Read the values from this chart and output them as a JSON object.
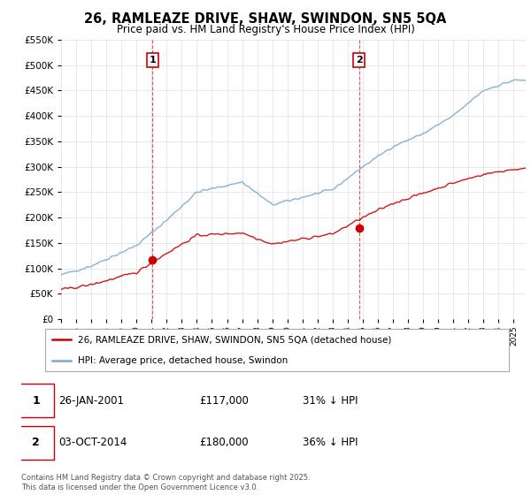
{
  "title": "26, RAMLEAZE DRIVE, SHAW, SWINDON, SN5 5QA",
  "subtitle": "Price paid vs. HM Land Registry's House Price Index (HPI)",
  "legend_line1": "26, RAMLEAZE DRIVE, SHAW, SWINDON, SN5 5QA (detached house)",
  "legend_line2": "HPI: Average price, detached house, Swindon",
  "footer": "Contains HM Land Registry data © Crown copyright and database right 2025.\nThis data is licensed under the Open Government Licence v3.0.",
  "sale1_date": "26-JAN-2001",
  "sale1_price": "£117,000",
  "sale1_hpi": "31% ↓ HPI",
  "sale2_date": "03-OCT-2014",
  "sale2_price": "£180,000",
  "sale2_hpi": "36% ↓ HPI",
  "red_color": "#cc0000",
  "blue_color": "#7aabcf",
  "dashed_color": "#cc0000",
  "sale1_x": 2001.07,
  "sale2_x": 2014.75,
  "sale1_y": 117000,
  "sale2_y": 180000,
  "ylim_min": 0,
  "ylim_max": 550000,
  "xlim_min": 1995.0,
  "xlim_max": 2025.8,
  "yticks": [
    0,
    50000,
    100000,
    150000,
    200000,
    250000,
    300000,
    350000,
    400000,
    450000,
    500000,
    550000
  ],
  "hpi_keypoints_x": [
    1995,
    1997,
    2000,
    2002,
    2004,
    2007,
    2009,
    2011,
    2013,
    2015,
    2017,
    2019,
    2021,
    2023,
    2025
  ],
  "hpi_keypoints_y": [
    87000,
    105000,
    145000,
    195000,
    250000,
    270000,
    225000,
    240000,
    255000,
    300000,
    340000,
    365000,
    400000,
    450000,
    470000
  ],
  "pp_keypoints_x": [
    1995,
    1997,
    2000,
    2002,
    2004,
    2007,
    2009,
    2011,
    2013,
    2015,
    2017,
    2019,
    2021,
    2023,
    2025
  ],
  "pp_keypoints_y": [
    58000,
    68000,
    92000,
    130000,
    165000,
    170000,
    148000,
    158000,
    168000,
    200000,
    228000,
    248000,
    268000,
    285000,
    295000
  ]
}
